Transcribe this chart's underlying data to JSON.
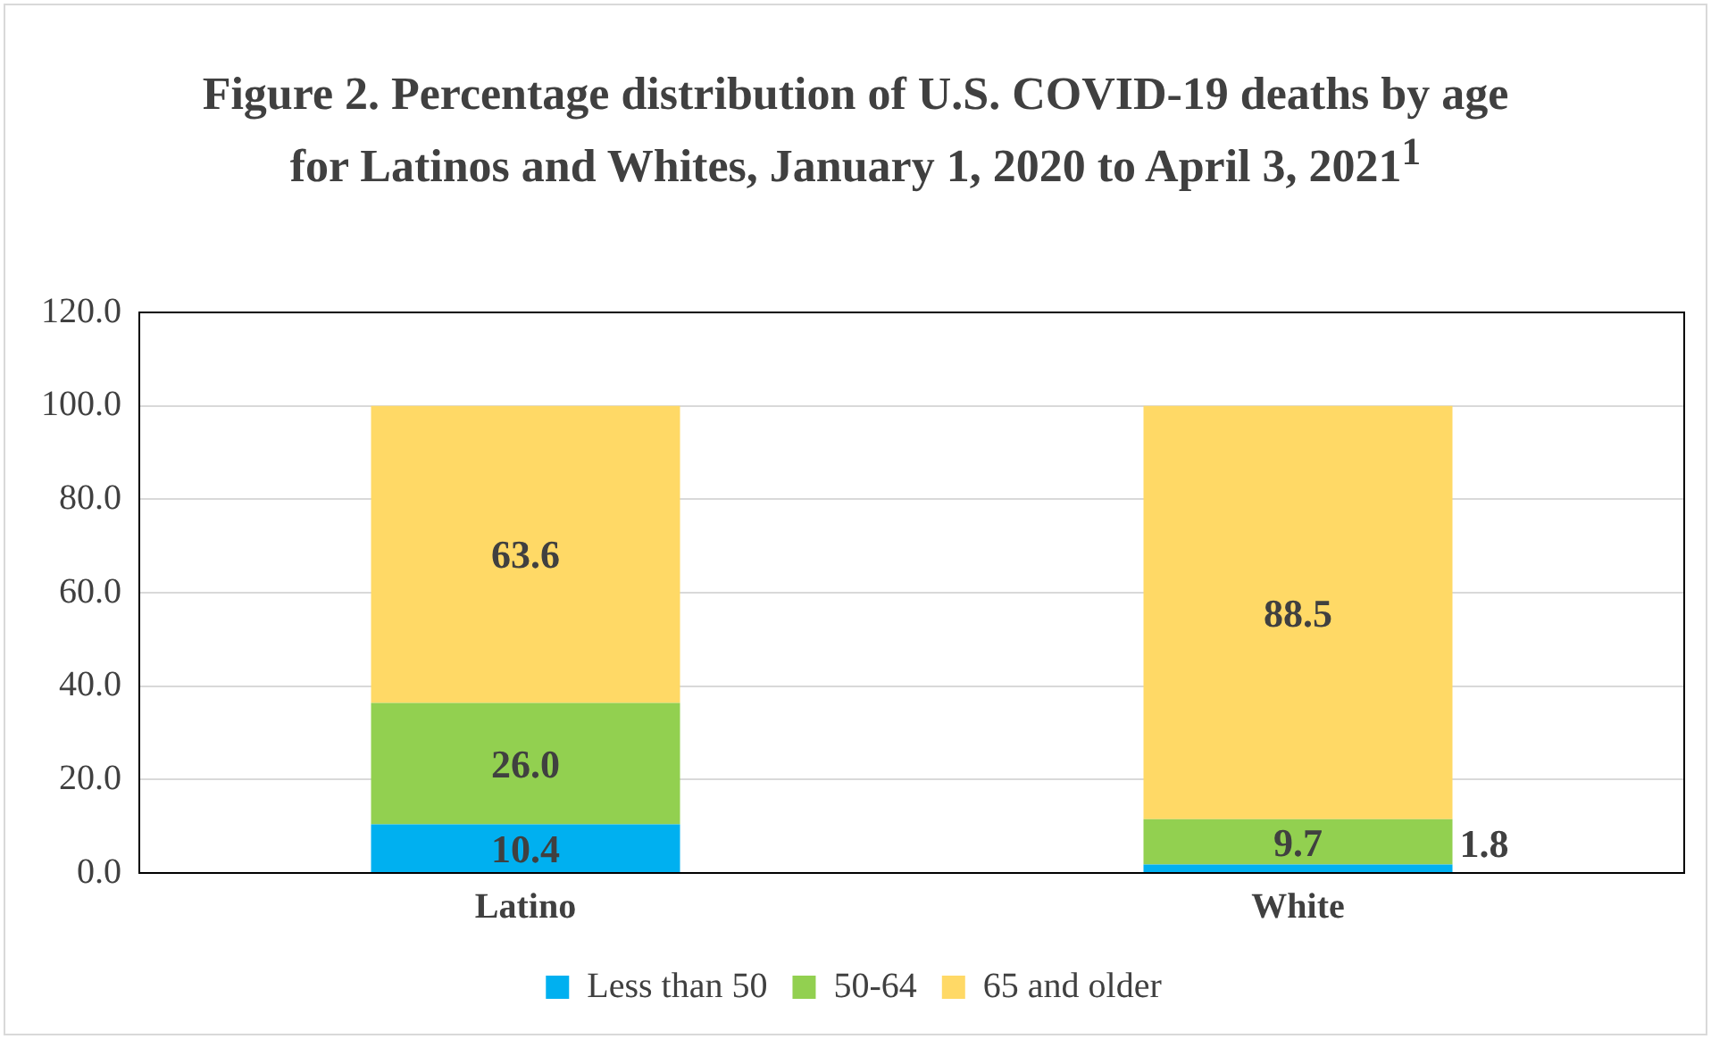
{
  "chart_data": {
    "type": "bar",
    "title": "Figure 2. Percentage distribution of U.S. COVID-19 deaths by age for Latinos and Whites, January 1, 2020 to April 3, 2021$^{1}$",
    "categories": [
      "Latino",
      "White"
    ],
    "series": [
      {
        "name": "Less than 50",
        "color": "#00b0f0",
        "values": [
          10.4,
          1.8
        ],
        "value_labels": [
          "10.4",
          "1.8"
        ]
      },
      {
        "name": "50-64",
        "color": "#92d050",
        "values": [
          26.0,
          9.7
        ],
        "value_labels": [
          "26.0",
          "9.7"
        ]
      },
      {
        "name": "65 and older",
        "color": "#ffd966",
        "values": [
          63.6,
          88.5
        ],
        "value_labels": [
          "63.6",
          "88.5"
        ]
      }
    ],
    "stacked": true,
    "ylim": [
      0,
      120
    ],
    "yticks": [
      {
        "value": 0,
        "label": "0.0"
      },
      {
        "value": 20,
        "label": "20.0"
      },
      {
        "value": 40,
        "label": "40.0"
      },
      {
        "value": 60,
        "label": "60.0"
      },
      {
        "value": 80,
        "label": "80.0"
      },
      {
        "value": 100,
        "label": "100.0"
      },
      {
        "value": 120,
        "label": "120.0"
      }
    ],
    "grid": "y",
    "legend": "bottom"
  }
}
